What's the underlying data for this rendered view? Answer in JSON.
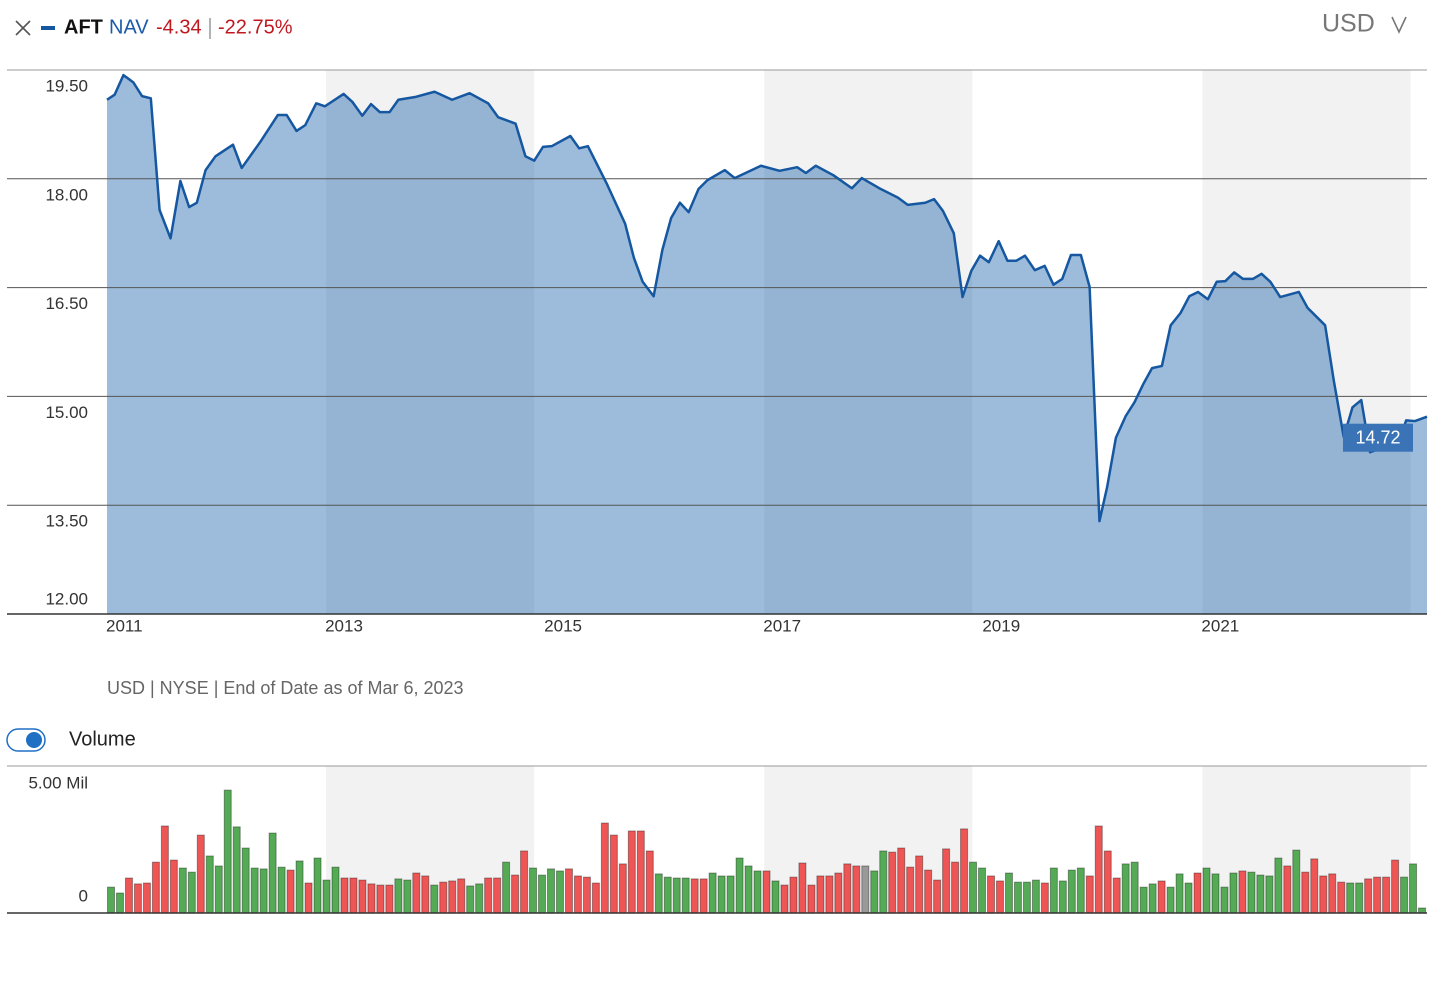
{
  "header": {
    "measure": "NAV",
    "change": "-4.34",
    "change_pct": "-22.75%",
    "currency": "USD"
  },
  "footer": {
    "source": "USD | NYSE | End of Date as of Mar 6, 2023"
  },
  "chart_data": [
    {
      "type": "area",
      "series": [
        {
          "name": "AFT",
          "color": "#1557a0",
          "fill": "rgba(21,95,170,0.42)",
          "values": [
            19.09,
            19.16,
            19.43,
            19.33,
            19.14,
            19.11,
            17.57,
            17.18,
            17.97,
            17.61,
            17.67,
            18.12,
            18.31,
            18.47,
            18.15,
            18.51,
            18.88,
            18.88,
            18.66,
            18.74,
            19.04,
            19,
            19.17,
            19.06,
            18.87,
            19.03,
            18.92,
            18.92,
            19.09,
            19.13,
            19.2,
            19.09,
            19.18,
            19.04,
            18.85,
            18.76,
            18.31,
            18.25,
            18.44,
            18.45,
            18.59,
            18.42,
            18.45,
            17.94,
            17.38,
            16.91,
            16.58,
            16.38,
            17.02,
            17.46,
            17.67,
            17.54,
            17.86,
            17.98,
            18.12,
            18.01,
            18.18,
            18.11,
            18.16,
            18.08,
            18.18,
            18.05,
            17.87,
            18.01,
            17.87,
            17.74,
            17.64,
            17.67,
            17.72,
            17.56,
            17.25,
            16.37,
            16.73,
            16.94,
            16.85,
            17.14,
            16.87,
            16.87,
            16.94,
            16.74,
            16.8,
            16.54,
            16.62,
            16.95,
            16.95,
            16.51,
            13.28,
            13.75,
            14.43,
            14.73,
            14.92,
            15.17,
            15.39,
            15.42,
            15.98,
            16.15,
            16.38,
            16.44,
            16.34,
            16.58,
            16.59,
            16.71,
            16.62,
            16.62,
            16.69,
            16.58,
            16.37,
            16.44,
            16.22,
            15.98,
            15.21,
            14.44,
            14.85,
            14.95,
            14.23,
            14.32,
            14.32,
            14.67,
            14.66,
            14.72
          ]
        }
      ],
      "x": [
        2011,
        2011.07,
        2011.15,
        2011.24,
        2011.32,
        2011.4,
        2011.48,
        2011.58,
        2011.67,
        2011.75,
        2011.82,
        2011.9,
        2011.99,
        2012.15,
        2012.23,
        2012.4,
        2012.56,
        2012.64,
        2012.73,
        2012.81,
        2012.91,
        2012.99,
        2013.16,
        2013.24,
        2013.33,
        2013.41,
        2013.49,
        2013.58,
        2013.66,
        2013.82,
        2013.99,
        2014.15,
        2014.31,
        2014.48,
        2014.57,
        2014.73,
        2014.82,
        2014.9,
        2014.98,
        2015.06,
        2015.23,
        2015.31,
        2015.39,
        2015.56,
        2015.73,
        2015.81,
        2015.89,
        2015.99,
        2016.07,
        2016.15,
        2016.23,
        2016.31,
        2016.4,
        2016.48,
        2016.64,
        2016.73,
        2016.97,
        2017.14,
        2017.3,
        2017.38,
        2017.47,
        2017.63,
        2017.8,
        2017.89,
        2018.05,
        2018.22,
        2018.31,
        2018.47,
        2018.55,
        2018.63,
        2018.73,
        2018.81,
        2018.89,
        2018.97,
        2019.05,
        2019.14,
        2019.22,
        2019.3,
        2019.38,
        2019.47,
        2019.56,
        2019.64,
        2019.72,
        2019.8,
        2019.89,
        2019.97,
        2020.06,
        2020.13,
        2020.21,
        2020.3,
        2020.38,
        2020.46,
        2020.54,
        2020.63,
        2020.71,
        2020.8,
        2020.88,
        2020.96,
        2021.05,
        2021.13,
        2021.21,
        2021.29,
        2021.37,
        2021.46,
        2021.54,
        2021.62,
        2021.71,
        2021.88,
        2021.96,
        2022.12,
        2022.2,
        2022.29,
        2022.37,
        2022.45,
        2022.53,
        2022.7,
        2022.78,
        2022.86,
        2022.94,
        2023.05
      ],
      "xlim": [
        2011,
        2023.05
      ],
      "xticks": [
        2011,
        2013,
        2015,
        2017,
        2019,
        2021
      ],
      "ylim": [
        12,
        19.5
      ],
      "yticks": [
        {
          "value": 12,
          "label": "12.00"
        },
        {
          "value": 13.5,
          "label": "13.50"
        },
        {
          "value": 15,
          "label": "15.00"
        },
        {
          "value": 16.5,
          "label": "16.50"
        },
        {
          "value": 18,
          "label": "18.00"
        },
        {
          "value": 19.5,
          "label": "19.50"
        }
      ],
      "grid": true,
      "last_value_color": "#3a74b6"
    },
    {
      "type": "bar",
      "title": "Volume",
      "toggle_on": true,
      "values": [
        0.88,
        0.68,
        1.19,
        0.99,
        1.02,
        1.73,
        2.96,
        1.8,
        1.53,
        1.39,
        2.65,
        1.94,
        1.6,
        4.18,
        2.93,
        2.21,
        1.53,
        1.5,
        2.72,
        1.56,
        1.46,
        1.77,
        1.02,
        1.87,
        1.12,
        1.56,
        1.19,
        1.19,
        1.12,
        0.99,
        0.95,
        0.95,
        1.16,
        1.12,
        1.36,
        1.26,
        0.95,
        1.05,
        1.09,
        1.16,
        0.92,
        0.99,
        1.19,
        1.19,
        1.73,
        1.29,
        2.11,
        1.53,
        1.29,
        1.5,
        1.43,
        1.5,
        1.26,
        1.22,
        1.02,
        3.06,
        2.65,
        1.67,
        2.79,
        2.79,
        2.11,
        1.33,
        1.22,
        1.19,
        1.19,
        1.16,
        1.16,
        1.36,
        1.26,
        1.26,
        1.87,
        1.6,
        1.43,
        1.43,
        1.09,
        0.95,
        1.22,
        1.7,
        0.95,
        1.26,
        1.26,
        1.36,
        1.67,
        1.6,
        1.6,
        1.43,
        2.11,
        2.07,
        2.21,
        1.56,
        1.94,
        1.46,
        1.12,
        2.18,
        1.73,
        2.86,
        1.73,
        1.53,
        1.26,
        1.09,
        1.36,
        1.05,
        1.05,
        1.12,
        1.02,
        1.53,
        1.09,
        1.46,
        1.53,
        1.26,
        2.96,
        2.11,
        1.19,
        1.67,
        1.73,
        0.88,
        0.99,
        1.09,
        0.88,
        1.33,
        1.02,
        1.36,
        1.53,
        1.33,
        0.88,
        1.36,
        1.43,
        1.39,
        1.29,
        1.26,
        1.87,
        1.6,
        2.14,
        1.39,
        1.84,
        1.26,
        1.33,
        1.05,
        1.02,
        1.02,
        1.16,
        1.22,
        1.22,
        1.8,
        1.22,
        1.67,
        0.17
      ],
      "colors": [
        "#5a5",
        "#5a5",
        "#e55",
        "#e55",
        "#e55",
        "#e55",
        "#e55",
        "#e55",
        "#5a5",
        "#5a5",
        "#e55",
        "#5a5",
        "#5a5",
        "#5a5",
        "#5a5",
        "#5a5",
        "#5a5",
        "#5a5",
        "#5a5",
        "#5a5",
        "#e55",
        "#5a5",
        "#e55",
        "#5a5",
        "#5a5",
        "#5a5",
        "#e55",
        "#e55",
        "#e55",
        "#e55",
        "#e55",
        "#e55",
        "#5a5",
        "#5a5",
        "#e55",
        "#e55",
        "#5a5",
        "#e55",
        "#e55",
        "#e55",
        "#5a5",
        "#5a5",
        "#e55",
        "#e55",
        "#5a5",
        "#e55",
        "#e55",
        "#5a5",
        "#5a5",
        "#5a5",
        "#5a5",
        "#e55",
        "#e55",
        "#e55",
        "#e55",
        "#e55",
        "#e55",
        "#e55",
        "#e55",
        "#e55",
        "#e55",
        "#5a5",
        "#5a5",
        "#5a5",
        "#5a5",
        "#e55",
        "#e55",
        "#5a5",
        "#5a5",
        "#5a5",
        "#5a5",
        "#5a5",
        "#5a5",
        "#e55",
        "#5a5",
        "#e55",
        "#e55",
        "#e55",
        "#e55",
        "#e55",
        "#e55",
        "#e55",
        "#e55",
        "#e55",
        "#999",
        "#5a5",
        "#5a5",
        "#e55",
        "#e55",
        "#e55",
        "#e55",
        "#e55",
        "#e55",
        "#e55",
        "#e55",
        "#e55",
        "#5a5",
        "#5a5",
        "#e55",
        "#e55",
        "#5a5",
        "#5a5",
        "#5a5",
        "#5a5",
        "#e55",
        "#5a5",
        "#5a5",
        "#5a5",
        "#5a5",
        "#e55",
        "#e55",
        "#e55",
        "#e55",
        "#5a5",
        "#5a5",
        "#5a5",
        "#5a5",
        "#e55",
        "#5a5",
        "#5a5",
        "#5a5",
        "#e55",
        "#5a5",
        "#5a5",
        "#5a5",
        "#5a5",
        "#e55",
        "#5a5",
        "#5a5",
        "#5a5",
        "#5a5",
        "#e55",
        "#5a5",
        "#e55",
        "#e55",
        "#e55",
        "#e55",
        "#e55",
        "#5a5",
        "#5a5",
        "#e55",
        "#e55",
        "#e55",
        "#e55",
        "#5a5",
        "#5a5",
        "#5a5"
      ],
      "ylim": [
        0,
        5
      ],
      "yticks": [
        0,
        {
          "value": 5,
          "label": "5.00 Mil"
        }
      ]
    }
  ]
}
